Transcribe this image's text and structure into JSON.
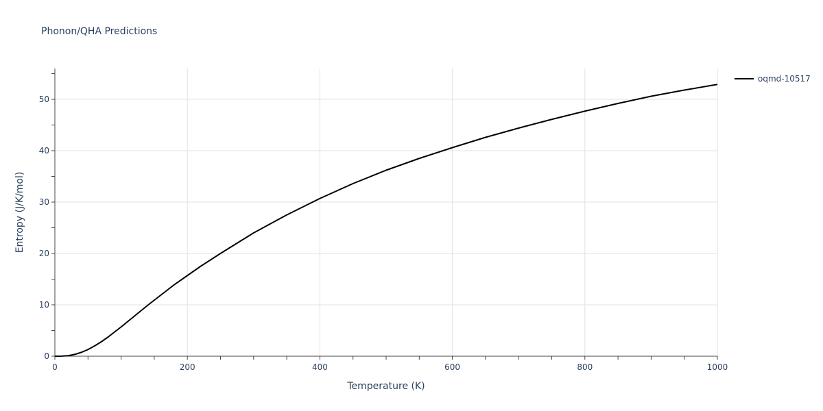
{
  "chart_data": {
    "type": "line",
    "title": "Phonon/QHA Predictions",
    "xlabel": "Temperature (K)",
    "ylabel": "Entropy (J/K/mol)",
    "xlim": [
      0,
      1000
    ],
    "ylim": [
      0,
      56
    ],
    "xticks": [
      0,
      200,
      400,
      600,
      800,
      1000
    ],
    "yticks": [
      0,
      10,
      20,
      30,
      40,
      50
    ],
    "grid": true,
    "legend_position": "top-right",
    "series": [
      {
        "name": "oqmd-10517",
        "color": "#000000",
        "x": [
          0,
          10,
          20,
          30,
          40,
          50,
          60,
          70,
          80,
          90,
          100,
          120,
          140,
          160,
          180,
          200,
          220,
          250,
          300,
          350,
          400,
          450,
          500,
          550,
          600,
          650,
          700,
          750,
          800,
          850,
          900,
          950,
          1000
        ],
        "y": [
          0,
          0.02,
          0.1,
          0.35,
          0.75,
          1.3,
          2.0,
          2.8,
          3.7,
          4.7,
          5.7,
          7.8,
          9.9,
          11.9,
          13.9,
          15.7,
          17.5,
          20.0,
          24.0,
          27.5,
          30.7,
          33.6,
          36.2,
          38.5,
          40.6,
          42.6,
          44.4,
          46.1,
          47.7,
          49.2,
          50.6,
          51.8,
          52.9
        ]
      }
    ]
  }
}
